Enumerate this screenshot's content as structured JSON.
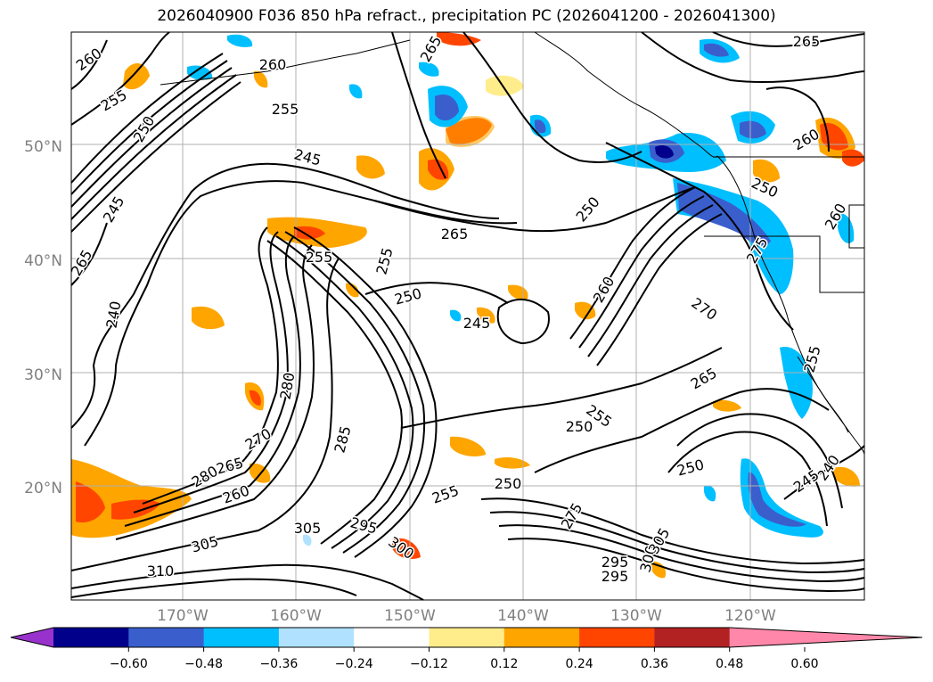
{
  "figure": {
    "title": "2026040900 F036 850 hPa refract., precipitation PC (2026041200 - 2026041300)"
  },
  "map": {
    "lat_ticks": [
      "50°N",
      "40°N",
      "30°N",
      "20°N"
    ],
    "lon_ticks": [
      "170°W",
      "160°W",
      "150°W",
      "140°W",
      "130°W",
      "120°W"
    ],
    "contour_labels": [
      "260",
      "255",
      "250",
      "245",
      "240",
      "265",
      "260",
      "255",
      "265",
      "245",
      "265",
      "255",
      "255",
      "250",
      "245",
      "250",
      "260",
      "270",
      "265",
      "275",
      "260",
      "255",
      "250",
      "250",
      "255",
      "275",
      "280",
      "285",
      "295",
      "300",
      "305",
      "310",
      "305",
      "280",
      "270",
      "265",
      "260",
      "295",
      "295",
      "300",
      "305",
      "250",
      "240",
      "245",
      "250",
      "255",
      "260",
      "265"
    ]
  },
  "colorbar": {
    "levels": [
      "−0.60",
      "−0.48",
      "−0.36",
      "−0.24",
      "−0.12",
      "0.12",
      "0.24",
      "0.36",
      "0.48",
      "0.60"
    ],
    "colors": [
      "#9932cc",
      "#00008b",
      "#3a5fcd",
      "#00bfff",
      "#b0e2ff",
      "#ffffff",
      "#ffec8b",
      "#ffa500",
      "#ff4500",
      "#b22222",
      "#ff88aa"
    ]
  }
}
